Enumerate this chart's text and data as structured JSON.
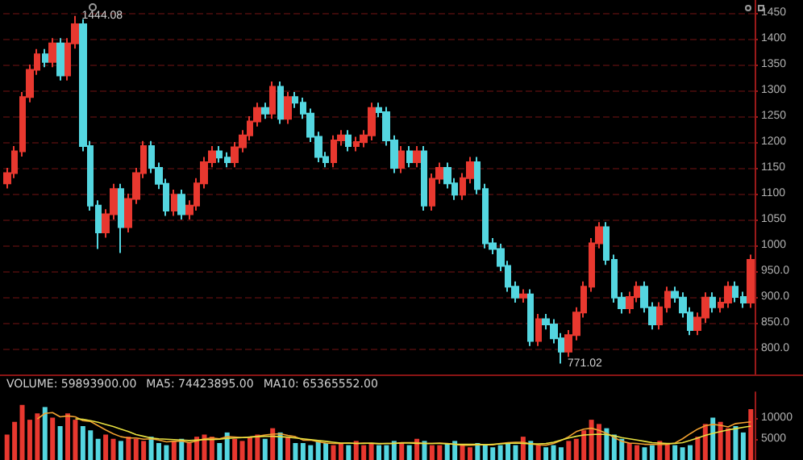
{
  "chart_data": [
    {
      "type": "candlestick",
      "categories": [
        null,
        null,
        null,
        null,
        null,
        null,
        null,
        null,
        null,
        null,
        null,
        null,
        null,
        null,
        null,
        null,
        null,
        null,
        null,
        null,
        null,
        null,
        null,
        null,
        null,
        null,
        null,
        null,
        null,
        null,
        null,
        null,
        null,
        null,
        null,
        null,
        null,
        null,
        null,
        null,
        null,
        null,
        null,
        null,
        null,
        null,
        null,
        null,
        null,
        null,
        null,
        null,
        null,
        null,
        null,
        null,
        null,
        null,
        null,
        null,
        null,
        null,
        null,
        null,
        null,
        null,
        null,
        null,
        null,
        null,
        null,
        null,
        null,
        null,
        null,
        null,
        null,
        null,
        null,
        null,
        null,
        null,
        null,
        null,
        null,
        null,
        null,
        null,
        null,
        null,
        null,
        null,
        null,
        null,
        null,
        null,
        null,
        null,
        null
      ],
      "ohlc": [
        [
          1120,
          1150,
          1110,
          1140
        ],
        [
          1140,
          1192,
          1130,
          1182
        ],
        [
          1182,
          1297,
          1172,
          1287
        ],
        [
          1287,
          1350,
          1277,
          1340
        ],
        [
          1340,
          1380,
          1330,
          1370
        ],
        [
          1370,
          1380,
          1345,
          1355
        ],
        [
          1355,
          1401,
          1345,
          1391
        ],
        [
          1391,
          1401,
          1319,
          1329
        ],
        [
          1329,
          1401,
          1319,
          1391
        ],
        [
          1391,
          1444.08,
          1381,
          1428
        ],
        [
          1428,
          1438,
          1182,
          1192
        ],
        [
          1192,
          1202,
          1067,
          1077
        ],
        [
          1077,
          1087,
          993,
          1025
        ],
        [
          1025,
          1070,
          1015,
          1060
        ],
        [
          1060,
          1119,
          1050,
          1109
        ],
        [
          1109,
          1119,
          985,
          1035
        ],
        [
          1035,
          1100,
          1025,
          1090
        ],
        [
          1090,
          1150,
          1080,
          1140
        ],
        [
          1140,
          1202,
          1130,
          1192
        ],
        [
          1192,
          1202,
          1140,
          1150
        ],
        [
          1150,
          1160,
          1109,
          1119
        ],
        [
          1119,
          1129,
          1057,
          1067
        ],
        [
          1067,
          1108,
          1057,
          1098
        ],
        [
          1098,
          1108,
          1050,
          1060
        ],
        [
          1060,
          1087,
          1050,
          1077
        ],
        [
          1077,
          1130,
          1067,
          1120
        ],
        [
          1120,
          1171,
          1110,
          1161
        ],
        [
          1161,
          1192,
          1151,
          1182
        ],
        [
          1182,
          1192,
          1160,
          1170
        ],
        [
          1170,
          1180,
          1151,
          1161
        ],
        [
          1161,
          1200,
          1151,
          1190
        ],
        [
          1190,
          1223,
          1180,
          1213
        ],
        [
          1213,
          1250,
          1203,
          1240
        ],
        [
          1240,
          1276,
          1230,
          1266
        ],
        [
          1266,
          1276,
          1245,
          1255
        ],
        [
          1255,
          1317,
          1245,
          1307
        ],
        [
          1307,
          1317,
          1235,
          1245
        ],
        [
          1245,
          1297,
          1235,
          1287
        ],
        [
          1287,
          1297,
          1266,
          1276
        ],
        [
          1276,
          1286,
          1245,
          1255
        ],
        [
          1255,
          1265,
          1200,
          1210
        ],
        [
          1210,
          1220,
          1161,
          1171
        ],
        [
          1171,
          1181,
          1151,
          1161
        ],
        [
          1161,
          1213,
          1151,
          1203
        ],
        [
          1203,
          1223,
          1193,
          1213
        ],
        [
          1213,
          1223,
          1182,
          1192
        ],
        [
          1192,
          1210,
          1182,
          1200
        ],
        [
          1200,
          1223,
          1190,
          1213
        ],
        [
          1213,
          1276,
          1203,
          1266
        ],
        [
          1266,
          1276,
          1248,
          1258
        ],
        [
          1258,
          1268,
          1193,
          1203
        ],
        [
          1203,
          1213,
          1140,
          1150
        ],
        [
          1150,
          1192,
          1140,
          1182
        ],
        [
          1182,
          1192,
          1151,
          1161
        ],
        [
          1161,
          1192,
          1151,
          1182
        ],
        [
          1182,
          1192,
          1067,
          1077
        ],
        [
          1077,
          1139,
          1067,
          1129
        ],
        [
          1129,
          1160,
          1119,
          1150
        ],
        [
          1150,
          1160,
          1110,
          1120
        ],
        [
          1120,
          1130,
          1088,
          1098
        ],
        [
          1098,
          1140,
          1088,
          1130
        ],
        [
          1130,
          1171,
          1120,
          1161
        ],
        [
          1161,
          1171,
          1099,
          1109
        ],
        [
          1109,
          1119,
          994,
          1004
        ],
        [
          1004,
          1014,
          983,
          993
        ],
        [
          993,
          1003,
          950,
          960
        ],
        [
          960,
          970,
          910,
          920
        ],
        [
          920,
          930,
          889,
          899
        ],
        [
          899,
          915,
          889,
          905
        ],
        [
          905,
          915,
          805,
          815
        ],
        [
          815,
          867,
          805,
          857
        ],
        [
          857,
          867,
          837,
          847
        ],
        [
          847,
          857,
          810,
          820
        ],
        [
          820,
          830,
          771.02,
          794
        ],
        [
          794,
          836,
          784,
          826
        ],
        [
          826,
          880,
          816,
          870
        ],
        [
          870,
          930,
          860,
          920
        ],
        [
          920,
          1014,
          910,
          1004
        ],
        [
          1004,
          1045,
          994,
          1035
        ],
        [
          1035,
          1045,
          962,
          972
        ],
        [
          972,
          982,
          889,
          899
        ],
        [
          899,
          909,
          868,
          878
        ],
        [
          878,
          910,
          868,
          900
        ],
        [
          900,
          930,
          890,
          920
        ],
        [
          920,
          930,
          870,
          880
        ],
        [
          880,
          890,
          837,
          847
        ],
        [
          847,
          890,
          837,
          880
        ],
        [
          880,
          920,
          870,
          910
        ],
        [
          910,
          920,
          889,
          899
        ],
        [
          899,
          909,
          860,
          870
        ],
        [
          870,
          880,
          826,
          836
        ],
        [
          836,
          870,
          826,
          860
        ],
        [
          860,
          909,
          850,
          899
        ],
        [
          899,
          909,
          870,
          880
        ],
        [
          880,
          899,
          870,
          889
        ],
        [
          889,
          930,
          879,
          920
        ],
        [
          920,
          930,
          890,
          900
        ],
        [
          900,
          910,
          879,
          889
        ],
        [
          889,
          982,
          879,
          972
        ]
      ],
      "colors": [
        "#e8382f",
        "#e8382f",
        "#e8382f",
        "#e8382f",
        "#e8382f",
        "#54d6e0",
        "#e8382f",
        "#54d6e0",
        "#e8382f",
        "#e8382f",
        "#54d6e0",
        "#54d6e0",
        "#54d6e0",
        "#e8382f",
        "#e8382f",
        "#54d6e0",
        "#e8382f",
        "#e8382f",
        "#e8382f",
        "#54d6e0",
        "#54d6e0",
        "#54d6e0",
        "#e8382f",
        "#54d6e0",
        "#e8382f",
        "#e8382f",
        "#e8382f",
        "#e8382f",
        "#54d6e0",
        "#54d6e0",
        "#e8382f",
        "#e8382f",
        "#e8382f",
        "#e8382f",
        "#54d6e0",
        "#e8382f",
        "#54d6e0",
        "#e8382f",
        "#54d6e0",
        "#54d6e0",
        "#54d6e0",
        "#54d6e0",
        "#54d6e0",
        "#e8382f",
        "#e8382f",
        "#54d6e0",
        "#e8382f",
        "#e8382f",
        "#e8382f",
        "#54d6e0",
        "#54d6e0",
        "#54d6e0",
        "#e8382f",
        "#54d6e0",
        "#e8382f",
        "#54d6e0",
        "#e8382f",
        "#e8382f",
        "#54d6e0",
        "#54d6e0",
        "#e8382f",
        "#e8382f",
        "#54d6e0",
        "#54d6e0",
        "#54d6e0",
        "#54d6e0",
        "#54d6e0",
        "#54d6e0",
        "#e8382f",
        "#54d6e0",
        "#e8382f",
        "#54d6e0",
        "#54d6e0",
        "#54d6e0",
        "#e8382f",
        "#e8382f",
        "#e8382f",
        "#e8382f",
        "#e8382f",
        "#54d6e0",
        "#54d6e0",
        "#54d6e0",
        "#e8382f",
        "#e8382f",
        "#54d6e0",
        "#54d6e0",
        "#e8382f",
        "#e8382f",
        "#54d6e0",
        "#54d6e0",
        "#54d6e0",
        "#e8382f",
        "#e8382f",
        "#54d6e0",
        "#e8382f",
        "#e8382f",
        "#54d6e0",
        "#54d6e0",
        "#e8382f"
      ],
      "ylim": [
        750,
        1475
      ],
      "yticks": [
        {
          "value": 800,
          "label": "800.0"
        },
        {
          "value": 850,
          "label": "850.0"
        },
        {
          "value": 900,
          "label": "900.0"
        },
        {
          "value": 950,
          "label": "950.0"
        },
        1000,
        1050,
        1100,
        1150,
        1200,
        1250,
        1300,
        1350,
        1400,
        1450
      ],
      "grid": "y",
      "tick_labels": "y",
      "annotations": [
        "1444.08",
        "771.02"
      ]
    },
    {
      "type": "bar",
      "categories": [
        null,
        null,
        null,
        null,
        null,
        null,
        null,
        null,
        null,
        null,
        null,
        null,
        null,
        null,
        null,
        null,
        null,
        null,
        null,
        null,
        null,
        null,
        null,
        null,
        null,
        null,
        null,
        null,
        null,
        null,
        null,
        null,
        null,
        null,
        null,
        null,
        null,
        null,
        null,
        null,
        null,
        null,
        null,
        null,
        null,
        null,
        null,
        null,
        null,
        null,
        null,
        null,
        null,
        null,
        null,
        null,
        null,
        null,
        null,
        null,
        null,
        null,
        null,
        null,
        null,
        null,
        null,
        null,
        null,
        null,
        null,
        null,
        null,
        null,
        null,
        null,
        null,
        null,
        null,
        null,
        null,
        null,
        null,
        null,
        null,
        null,
        null,
        null,
        null,
        null,
        null,
        null,
        null,
        null,
        null,
        null,
        null,
        null,
        null
      ],
      "series": [
        {
          "values": [
            6000,
            9000,
            13000,
            9500,
            11000,
            12500,
            10000,
            8000,
            11000,
            9500,
            8000,
            7000,
            5000,
            6000,
            5000,
            4500,
            5500,
            5000,
            4500,
            5500,
            4000,
            3500,
            4500,
            5000,
            4000,
            5500,
            6000,
            5500,
            4000,
            6500,
            5000,
            4500,
            5500,
            6000,
            5000,
            7500,
            6500,
            5500,
            4000,
            4000,
            3500,
            4500,
            4000,
            3500,
            4000,
            3500,
            4500,
            3500,
            4000,
            3500,
            3500,
            4500,
            4000,
            3500,
            5000,
            4500,
            3500,
            3500,
            4000,
            4500,
            3500,
            3000,
            4000,
            3500,
            3000,
            3500,
            4000,
            3500,
            5500,
            4500,
            3500,
            3000,
            3500,
            3000,
            4500,
            5000,
            7000,
            9500,
            8500,
            7500,
            6000,
            5000,
            4000,
            3500,
            3000,
            3500,
            4500,
            4000,
            3500,
            3000,
            3500,
            5500,
            8500,
            10000,
            9000,
            7500,
            8000,
            6500,
            12000
          ],
          "colors": [
            "#e8382f",
            "#e8382f",
            "#e8382f",
            "#e8382f",
            "#e8382f",
            "#54d6e0",
            "#e8382f",
            "#54d6e0",
            "#e8382f",
            "#e8382f",
            "#54d6e0",
            "#54d6e0",
            "#54d6e0",
            "#e8382f",
            "#e8382f",
            "#54d6e0",
            "#e8382f",
            "#e8382f",
            "#e8382f",
            "#54d6e0",
            "#54d6e0",
            "#54d6e0",
            "#e8382f",
            "#54d6e0",
            "#e8382f",
            "#e8382f",
            "#e8382f",
            "#e8382f",
            "#54d6e0",
            "#54d6e0",
            "#e8382f",
            "#e8382f",
            "#e8382f",
            "#e8382f",
            "#54d6e0",
            "#e8382f",
            "#54d6e0",
            "#e8382f",
            "#54d6e0",
            "#54d6e0",
            "#54d6e0",
            "#54d6e0",
            "#54d6e0",
            "#e8382f",
            "#e8382f",
            "#54d6e0",
            "#e8382f",
            "#e8382f",
            "#e8382f",
            "#54d6e0",
            "#54d6e0",
            "#54d6e0",
            "#e8382f",
            "#54d6e0",
            "#e8382f",
            "#54d6e0",
            "#e8382f",
            "#e8382f",
            "#54d6e0",
            "#54d6e0",
            "#e8382f",
            "#e8382f",
            "#54d6e0",
            "#54d6e0",
            "#54d6e0",
            "#54d6e0",
            "#54d6e0",
            "#54d6e0",
            "#e8382f",
            "#54d6e0",
            "#e8382f",
            "#54d6e0",
            "#54d6e0",
            "#54d6e0",
            "#e8382f",
            "#e8382f",
            "#e8382f",
            "#e8382f",
            "#e8382f",
            "#54d6e0",
            "#54d6e0",
            "#54d6e0",
            "#e8382f",
            "#e8382f",
            "#54d6e0",
            "#54d6e0",
            "#e8382f",
            "#e8382f",
            "#54d6e0",
            "#54d6e0",
            "#54d6e0",
            "#e8382f",
            "#e8382f",
            "#54d6e0",
            "#e8382f",
            "#e8382f",
            "#54d6e0",
            "#54d6e0",
            "#e8382f"
          ]
        },
        {
          "type": "line",
          "color": "#f0a030",
          "values": [
            null,
            null,
            null,
            null,
            9700,
            11000,
            11200,
            10200,
            10400,
            10200,
            9300,
            9100,
            8100,
            7100,
            6200,
            5500,
            5200,
            5200,
            4900,
            5000,
            4700,
            4300,
            4400,
            4500,
            4100,
            4500,
            5000,
            5200,
            5000,
            5500,
            5400,
            5300,
            5400,
            5600,
            5900,
            6100,
            6200,
            5800,
            5500,
            4700,
            4700,
            4300,
            4000,
            3900,
            3900,
            4000,
            3900,
            4000,
            3900,
            3800,
            3900,
            3900,
            4100,
            4100,
            4100,
            3900,
            3900,
            4000,
            3900,
            3700,
            3500,
            3500,
            3600,
            3600,
            3600,
            3900,
            4100,
            4200,
            4200,
            3800,
            3600,
            3500,
            3900,
            4600,
            5500,
            6700,
            7300,
            7500,
            7000,
            6300,
            5300,
            4400,
            4000,
            3900,
            3700,
            3700,
            3700,
            3700,
            4000,
            5000,
            6200,
            7300,
            8100,
            8400,
            8200,
            7800,
            8600,
            8800,
            9000
          ]
        },
        {
          "type": "line",
          "color": "#e8e040",
          "values": [
            null,
            null,
            null,
            null,
            null,
            null,
            null,
            null,
            null,
            9700,
            9600,
            9300,
            8900,
            8400,
            7900,
            7300,
            6700,
            6000,
            5600,
            5200,
            5000,
            4900,
            4800,
            4700,
            4600,
            4700,
            4800,
            4800,
            4900,
            5100,
            5200,
            5300,
            5400,
            5500,
            5600,
            5600,
            5500,
            5400,
            5200,
            5000,
            4800,
            4600,
            4400,
            4200,
            4000,
            4000,
            3900,
            3900,
            4000,
            3900,
            3900,
            3900,
            4000,
            4000,
            3900,
            3900,
            3900,
            3900,
            3800,
            3700,
            3700,
            3700,
            3700,
            3600,
            3700,
            3800,
            3900,
            4000,
            3900,
            3800,
            3800,
            3900,
            4200,
            4700,
            5200,
            5600,
            5900,
            6000,
            6100,
            6000,
            5700,
            5300,
            5000,
            4700,
            4400,
            4100,
            4000,
            3900,
            3900,
            4100,
            4600,
            5200,
            5800,
            6300,
            6700,
            7100,
            7400,
            7700,
            8000
          ]
        }
      ],
      "ylim": [
        0,
        16000
      ],
      "yticks": [
        5000,
        10000
      ],
      "tick_labels": "y",
      "annotations": [
        "VOLUME: 59893900.00",
        "MA5: 74423895.00",
        "MA10: 65365552.00"
      ]
    }
  ]
}
